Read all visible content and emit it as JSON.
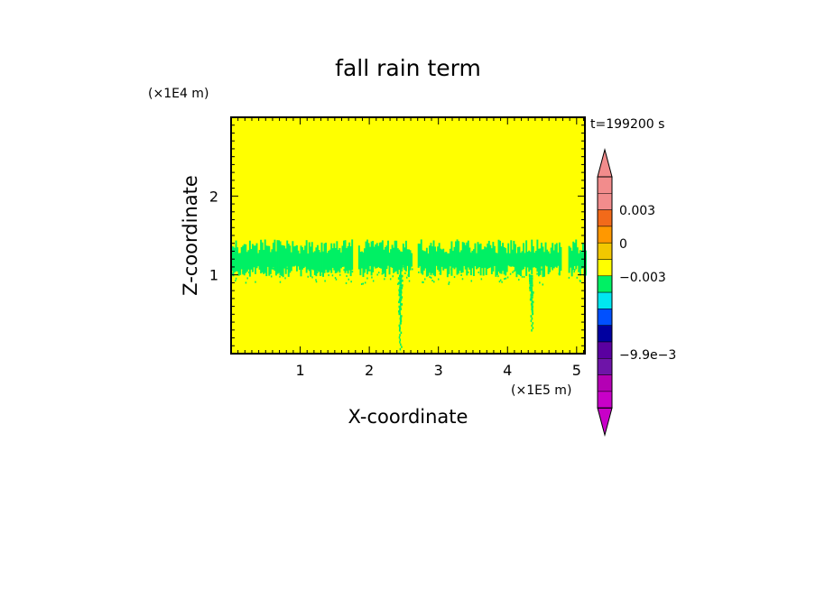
{
  "chart_data": {
    "type": "heatmap",
    "title": "fall rain term",
    "time_label": "t=199200 s",
    "xlabel": "X-coordinate",
    "ylabel": "Z-coordinate",
    "x_scale_label": "(×1E5 m)",
    "y_scale_label": "(×1E4 m)",
    "xlim": [
      0,
      5.12
    ],
    "ylim": [
      0,
      3.0
    ],
    "x_ticks": [
      1,
      2,
      3,
      4,
      5
    ],
    "y_ticks": [
      1,
      2
    ],
    "x_tick_labels": [
      "1",
      "2",
      "3",
      "4",
      "5"
    ],
    "y_tick_labels": [
      "1",
      "2"
    ],
    "background_level_color": "#ffff00",
    "rain_level_color": "#00f064",
    "rain_band": {
      "z_bottom": 1.0,
      "z_top": 1.45,
      "x_gaps": [
        [
          1.77,
          1.85
        ],
        [
          2.62,
          2.7
        ],
        [
          4.78,
          4.87
        ]
      ],
      "plumes": [
        {
          "x": 2.45,
          "z_min": 0.05
        },
        {
          "x": 4.35,
          "z_min": 0.3
        }
      ]
    },
    "colorbar": {
      "levels_top_to_bottom": [
        {
          "color": "#f28c8c"
        },
        {
          "color": "#f28c8c"
        },
        {
          "color": "#f26a1a"
        },
        {
          "color": "#ff9800"
        },
        {
          "color": "#f2c800"
        },
        {
          "color": "#ffff00"
        },
        {
          "color": "#00f064"
        },
        {
          "color": "#00e6f0"
        },
        {
          "color": "#0050ff"
        },
        {
          "color": "#0000a0"
        },
        {
          "color": "#5a00a0"
        },
        {
          "color": "#6e14a8"
        },
        {
          "color": "#b400b4"
        },
        {
          "color": "#c800c8"
        }
      ],
      "top_arrow_color": "#f28c8c",
      "bottom_arrow_color": "#c800c8",
      "tick_labels": [
        "0.003",
        "0",
        "−0.003",
        "−9.9e−3"
      ]
    }
  }
}
